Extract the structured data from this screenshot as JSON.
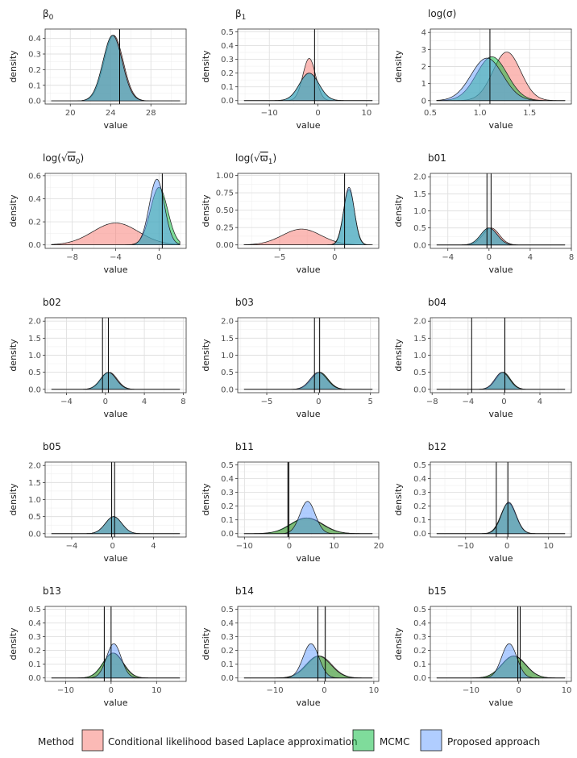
{
  "figure": {
    "xlabel": "value",
    "ylabel": "density",
    "legend_title": "Method"
  },
  "legend": [
    {
      "name": "Conditional likelihood based Laplace approximation",
      "color": "#F8766D"
    },
    {
      "name": "MCMC",
      "color": "#00BA38"
    },
    {
      "name": "Proposed approach",
      "color": "#619CFF"
    }
  ],
  "chart_data": [
    {
      "type": "area",
      "title": "β0",
      "xlim": [
        17.5,
        31.5
      ],
      "ylim": [
        -0.02,
        0.46
      ],
      "xticks": [
        20,
        24,
        28
      ],
      "yticks": [
        0.0,
        0.1,
        0.2,
        0.3,
        0.4
      ],
      "ytick_labels": [
        "0.0",
        "0.1",
        "0.2",
        "0.3",
        "0.4"
      ],
      "vlines": [
        24.9
      ],
      "series": [
        {
          "name": "Conditional likelihood based Laplace approximation",
          "mean": 24.3,
          "sd": 0.95
        },
        {
          "name": "MCMC",
          "mean": 24.2,
          "sd": 0.95
        },
        {
          "name": "Proposed approach",
          "mean": 24.2,
          "sd": 0.95
        }
      ]
    },
    {
      "type": "area",
      "title": "β1",
      "xlim": [
        -16.5,
        12.5
      ],
      "ylim": [
        -0.025,
        0.52
      ],
      "xticks": [
        -10,
        0,
        10
      ],
      "yticks": [
        0.0,
        0.1,
        0.2,
        0.3,
        0.4,
        0.5
      ],
      "ytick_labels": [
        "0.0",
        "0.1",
        "0.2",
        "0.3",
        "0.4",
        "0.5"
      ],
      "vlines": [
        -0.7
      ],
      "series": [
        {
          "name": "Conditional likelihood based Laplace approximation",
          "mean": -1.8,
          "sd": 1.3
        },
        {
          "name": "MCMC",
          "mean": -1.8,
          "sd": 2.0
        },
        {
          "name": "Proposed approach",
          "mean": -1.8,
          "sd": 2.0
        }
      ]
    },
    {
      "type": "area",
      "title": "log(σ)",
      "xlim": [
        0.5,
        1.92
      ],
      "ylim": [
        -0.2,
        4.2
      ],
      "xticks": [
        0.5,
        1.0,
        1.5
      ],
      "xtick_labels": [
        "0.5",
        "1.0",
        "1.5"
      ],
      "yticks": [
        0,
        1,
        2,
        3,
        4
      ],
      "ytick_labels": [
        "0",
        "1",
        "2",
        "3",
        "4"
      ],
      "vlines": [
        1.1
      ],
      "series": [
        {
          "name": "Conditional likelihood based Laplace approximation",
          "mean": 1.27,
          "sd": 0.14
        },
        {
          "name": "MCMC",
          "mean": 1.12,
          "sd": 0.155
        },
        {
          "name": "Proposed approach",
          "mean": 1.07,
          "sd": 0.16
        }
      ]
    },
    {
      "type": "area",
      "title": "log(√ϖ0)",
      "xlim": [
        -10.5,
        2.5
      ],
      "ylim": [
        -0.03,
        0.62
      ],
      "xticks": [
        -8,
        -4,
        0
      ],
      "yticks": [
        0.0,
        0.2,
        0.4,
        0.6
      ],
      "ytick_labels": [
        "0.0",
        "0.2",
        "0.4",
        "0.6"
      ],
      "vlines": [
        0.3
      ],
      "series": [
        {
          "name": "Conditional likelihood based Laplace approximation",
          "mean": -4.0,
          "sd": 2.1
        },
        {
          "name": "MCMC",
          "mean": 0.0,
          "sd": 0.8
        },
        {
          "name": "Proposed approach",
          "mean": -0.2,
          "sd": 0.7
        }
      ]
    },
    {
      "type": "area",
      "title": "log(√ϖ1)",
      "xlim": [
        -8.8,
        4.0
      ],
      "ylim": [
        -0.05,
        1.03
      ],
      "xticks": [
        -5,
        0
      ],
      "yticks": [
        0.0,
        0.25,
        0.5,
        0.75,
        1.0
      ],
      "ytick_labels": [
        "0.00",
        "0.25",
        "0.50",
        "0.75",
        "1.00"
      ],
      "vlines": [
        0.9
      ],
      "series": [
        {
          "name": "Conditional likelihood based Laplace approximation",
          "mean": -3.0,
          "sd": 1.75
        },
        {
          "name": "MCMC",
          "mean": 1.3,
          "sd": 0.5
        },
        {
          "name": "Proposed approach",
          "mean": 1.3,
          "sd": 0.48
        }
      ]
    },
    {
      "type": "area",
      "title": "b01",
      "xlim": [
        -5.7,
        8.0
      ],
      "ylim": [
        -0.1,
        2.1
      ],
      "xticks": [
        -4,
        0,
        4,
        8
      ],
      "yticks": [
        0.0,
        0.5,
        1.0,
        1.5,
        2.0
      ],
      "ytick_labels": [
        "0.0",
        "0.5",
        "1.0",
        "1.5",
        "2.0"
      ],
      "vlines": [
        -0.2,
        0.2
      ],
      "series": [
        {
          "name": "Conditional likelihood based Laplace approximation",
          "mean": 0.2,
          "sd": 0.8
        },
        {
          "name": "MCMC",
          "mean": 0.0,
          "sd": 0.8
        },
        {
          "name": "Proposed approach",
          "mean": 0.0,
          "sd": 0.8
        }
      ]
    },
    {
      "type": "area",
      "title": "b02",
      "xlim": [
        -6.2,
        8.3
      ],
      "ylim": [
        -0.1,
        2.1
      ],
      "xticks": [
        -4,
        0,
        4,
        8
      ],
      "yticks": [
        0.0,
        0.5,
        1.0,
        1.5,
        2.0
      ],
      "ytick_labels": [
        "0.0",
        "0.5",
        "1.0",
        "1.5",
        "2.0"
      ],
      "vlines": [
        -0.3,
        0.3
      ],
      "series": [
        {
          "name": "Conditional likelihood based Laplace approximation",
          "mean": 0.4,
          "sd": 0.8
        },
        {
          "name": "MCMC",
          "mean": 0.3,
          "sd": 0.8
        },
        {
          "name": "Proposed approach",
          "mean": 0.3,
          "sd": 0.8
        }
      ]
    },
    {
      "type": "area",
      "title": "b03",
      "xlim": [
        -7.8,
        5.8
      ],
      "ylim": [
        -0.1,
        2.1
      ],
      "xticks": [
        -5,
        0,
        5
      ],
      "yticks": [
        0.0,
        0.5,
        1.0,
        1.5,
        2.0
      ],
      "ytick_labels": [
        "0.0",
        "0.5",
        "1.0",
        "1.5",
        "2.0"
      ],
      "vlines": [
        -0.4,
        0.1
      ],
      "series": [
        {
          "name": "Conditional likelihood based Laplace approximation",
          "mean": 0.1,
          "sd": 0.8
        },
        {
          "name": "MCMC",
          "mean": 0.1,
          "sd": 0.8
        },
        {
          "name": "Proposed approach",
          "mean": 0.0,
          "sd": 0.8
        }
      ]
    },
    {
      "type": "area",
      "title": "b04",
      "xlim": [
        -8.2,
        7.5
      ],
      "ylim": [
        -0.1,
        2.1
      ],
      "xticks": [
        -8,
        -4,
        0,
        4
      ],
      "yticks": [
        0.0,
        0.5,
        1.0,
        1.5,
        2.0
      ],
      "ytick_labels": [
        "0.0",
        "0.5",
        "1.0",
        "1.5",
        "2.0"
      ],
      "vlines": [
        -3.6,
        0.1
      ],
      "series": [
        {
          "name": "Conditional likelihood based Laplace approximation",
          "mean": -0.1,
          "sd": 0.8
        },
        {
          "name": "MCMC",
          "mean": -0.1,
          "sd": 0.8
        },
        {
          "name": "Proposed approach",
          "mean": -0.2,
          "sd": 0.8
        }
      ]
    },
    {
      "type": "area",
      "title": "b05",
      "xlim": [
        -6.6,
        7.2
      ],
      "ylim": [
        -0.1,
        2.1
      ],
      "xticks": [
        -4,
        0,
        4
      ],
      "yticks": [
        0.0,
        0.5,
        1.0,
        1.5,
        2.0
      ],
      "ytick_labels": [
        "0.0",
        "0.5",
        "1.0",
        "1.5",
        "2.0"
      ],
      "vlines": [
        -0.1,
        0.2
      ],
      "series": [
        {
          "name": "Conditional likelihood based Laplace approximation",
          "mean": 0.1,
          "sd": 0.8
        },
        {
          "name": "MCMC",
          "mean": 0.1,
          "sd": 0.8
        },
        {
          "name": "Proposed approach",
          "mean": 0.1,
          "sd": 0.8
        }
      ]
    },
    {
      "type": "area",
      "title": "b11",
      "xlim": [
        -11.5,
        20.0
      ],
      "ylim": [
        -0.025,
        0.52
      ],
      "xticks": [
        -10,
        0,
        10,
        20
      ],
      "yticks": [
        0.0,
        0.1,
        0.2,
        0.3,
        0.4,
        0.5
      ],
      "ytick_labels": [
        "0.0",
        "0.1",
        "0.2",
        "0.3",
        "0.4",
        "0.5"
      ],
      "vlines": [
        -0.3,
        -0.1
      ],
      "series": [
        {
          "name": "Conditional likelihood based Laplace approximation",
          "mean": 4.0,
          "sd": 3.5
        },
        {
          "name": "MCMC",
          "mean": 3.8,
          "sd": 3.5
        },
        {
          "name": "Proposed approach",
          "mean": 4.1,
          "sd": 1.7
        }
      ]
    },
    {
      "type": "area",
      "title": "b12",
      "xlim": [
        -18.5,
        15.5
      ],
      "ylim": [
        -0.025,
        0.52
      ],
      "xticks": [
        -10,
        0,
        10
      ],
      "yticks": [
        0.0,
        0.1,
        0.2,
        0.3,
        0.4,
        0.5
      ],
      "ytick_labels": [
        "0.0",
        "0.1",
        "0.2",
        "0.3",
        "0.4",
        "0.5"
      ],
      "vlines": [
        -2.6,
        0.2
      ],
      "series": [
        {
          "name": "Conditional likelihood based Laplace approximation",
          "mean": 0.4,
          "sd": 1.8
        },
        {
          "name": "MCMC",
          "mean": 0.3,
          "sd": 1.8
        },
        {
          "name": "Proposed approach",
          "mean": 0.4,
          "sd": 1.75
        }
      ]
    },
    {
      "type": "area",
      "title": "b13",
      "xlim": [
        -14.5,
        16.5
      ],
      "ylim": [
        -0.025,
        0.52
      ],
      "xticks": [
        -10,
        0,
        10
      ],
      "yticks": [
        0.0,
        0.1,
        0.2,
        0.3,
        0.4,
        0.5
      ],
      "ytick_labels": [
        "0.0",
        "0.1",
        "0.2",
        "0.3",
        "0.4",
        "0.5"
      ],
      "vlines": [
        -1.5,
        0.0
      ],
      "series": [
        {
          "name": "Conditional likelihood based Laplace approximation",
          "mean": 0.5,
          "sd": 2.2
        },
        {
          "name": "MCMC",
          "mean": 0.4,
          "sd": 2.2
        },
        {
          "name": "Proposed approach",
          "mean": 0.6,
          "sd": 1.6
        }
      ]
    },
    {
      "type": "area",
      "title": "b14",
      "xlim": [
        -17.5,
        11.0
      ],
      "ylim": [
        -0.025,
        0.52
      ],
      "xticks": [
        -10,
        0,
        10
      ],
      "yticks": [
        0.0,
        0.1,
        0.2,
        0.3,
        0.4,
        0.5
      ],
      "ytick_labels": [
        "0.0",
        "0.1",
        "0.2",
        "0.3",
        "0.4",
        "0.5"
      ],
      "vlines": [
        -1.3,
        0.2
      ],
      "series": [
        {
          "name": "Conditional likelihood based Laplace approximation",
          "mean": -1.0,
          "sd": 2.5
        },
        {
          "name": "MCMC",
          "mean": -1.2,
          "sd": 2.5
        },
        {
          "name": "Proposed approach",
          "mean": -2.7,
          "sd": 1.6
        }
      ]
    },
    {
      "type": "area",
      "title": "b15",
      "xlim": [
        -18.5,
        11.0
      ],
      "ylim": [
        -0.025,
        0.52
      ],
      "xticks": [
        -10,
        0,
        10
      ],
      "yticks": [
        0.0,
        0.1,
        0.2,
        0.3,
        0.4,
        0.5
      ],
      "ytick_labels": [
        "0.0",
        "0.1",
        "0.2",
        "0.3",
        "0.4",
        "0.5"
      ],
      "vlines": [
        -0.2,
        0.3
      ],
      "series": [
        {
          "name": "Conditional likelihood based Laplace approximation",
          "mean": -1.0,
          "sd": 2.5
        },
        {
          "name": "MCMC",
          "mean": -1.1,
          "sd": 2.5
        },
        {
          "name": "Proposed approach",
          "mean": -2.0,
          "sd": 1.6
        }
      ]
    }
  ]
}
